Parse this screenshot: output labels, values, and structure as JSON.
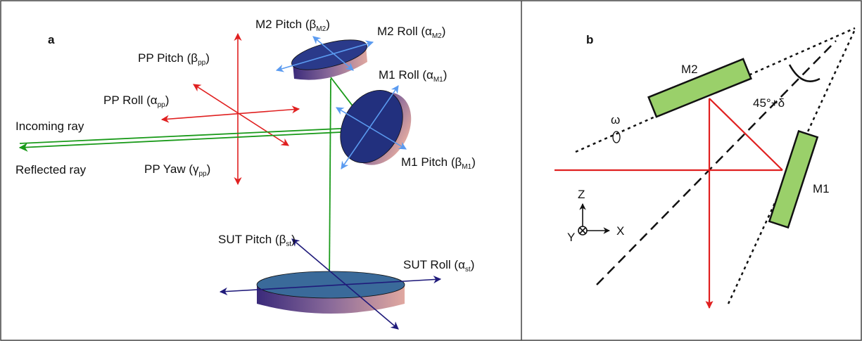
{
  "panel_a": {
    "label": "a",
    "annotations": [
      {
        "text": "M2 Pitch (β",
        "sub": "M2",
        "end": ")"
      },
      {
        "text": "M2 Roll (α",
        "sub": "M2",
        "end": ")"
      },
      {
        "text": "PP Pitch (β",
        "sub": "pp",
        "end": ")"
      },
      {
        "text": "M1 Roll (α",
        "sub": "M1",
        "end": ")"
      },
      {
        "text": "PP Roll (α",
        "sub": "pp",
        "end": ")"
      },
      {
        "text": "M1 Pitch (β",
        "sub": "M1",
        "end": ")"
      },
      {
        "text": "PP Yaw (γ",
        "sub": "pp",
        "end": ")"
      },
      {
        "text": "SUT Pitch (β",
        "sub": "st",
        "end": ")"
      },
      {
        "text": "SUT Roll (α",
        "sub": "st",
        "end": ")"
      }
    ],
    "rays": [
      "Incoming ray",
      "Reflected ray"
    ]
  },
  "panel_b": {
    "label": "b",
    "mirrors": [
      "M2",
      "M1"
    ],
    "rotation": "ω",
    "angle": "45°+δ",
    "axes": {
      "z": "Z",
      "x": "X",
      "y": "Y"
    }
  }
}
